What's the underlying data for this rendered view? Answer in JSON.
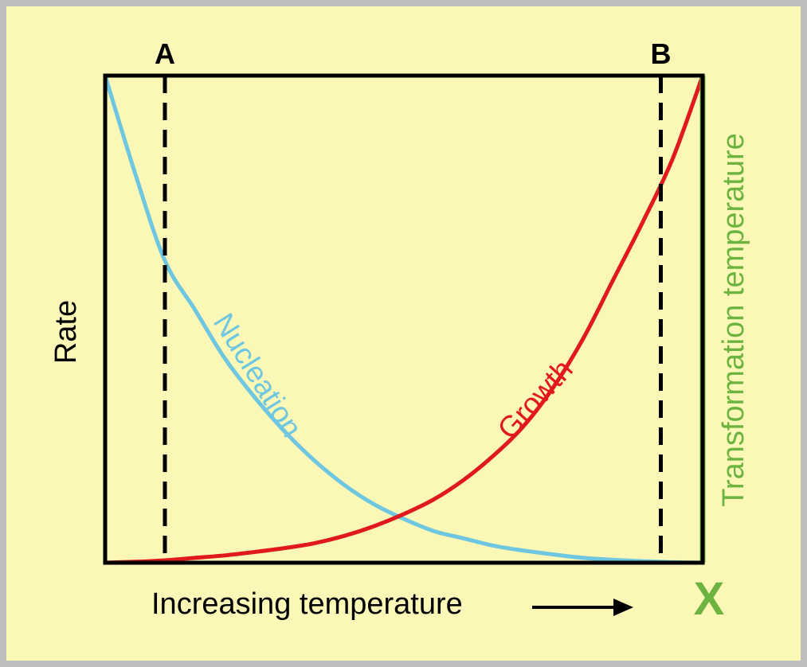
{
  "colors": {
    "background": "#fbf7b6",
    "border": "#bdbdbd",
    "axis": "#000000",
    "nucleation": "#6ec6e0",
    "growth": "#e0191c",
    "transformation": "#6cb43f"
  },
  "chart_data": {
    "type": "line",
    "title": "",
    "xlabel": "Increasing temperature",
    "ylabel": "Rate",
    "xlim": [
      0,
      1
    ],
    "ylim": [
      0,
      1
    ],
    "grid": false,
    "legend": "none",
    "series": [
      {
        "name": "Nucleation",
        "x": [
          0.0,
          0.05,
          0.1,
          0.15,
          0.2,
          0.25,
          0.3,
          0.35,
          0.4,
          0.45,
          0.5,
          0.55,
          0.6,
          0.65,
          0.7,
          0.75,
          0.8,
          0.85,
          0.9,
          0.95,
          1.0
        ],
        "y": [
          1.0,
          0.8,
          0.62,
          0.52,
          0.42,
          0.34,
          0.27,
          0.21,
          0.16,
          0.12,
          0.09,
          0.065,
          0.05,
          0.035,
          0.025,
          0.017,
          0.01,
          0.006,
          0.003,
          0.001,
          0.0
        ]
      },
      {
        "name": "Growth",
        "x": [
          0.0,
          0.05,
          0.1,
          0.15,
          0.2,
          0.25,
          0.3,
          0.35,
          0.4,
          0.45,
          0.5,
          0.55,
          0.6,
          0.65,
          0.7,
          0.75,
          0.8,
          0.85,
          0.9,
          0.95,
          1.0
        ],
        "y": [
          0.0,
          0.002,
          0.005,
          0.01,
          0.015,
          0.022,
          0.03,
          0.04,
          0.055,
          0.075,
          0.1,
          0.13,
          0.17,
          0.22,
          0.28,
          0.36,
          0.46,
          0.58,
          0.7,
          0.83,
          1.0
        ]
      }
    ],
    "markers": [
      {
        "label": "A",
        "x": 0.1
      },
      {
        "label": "B",
        "x": 0.93
      }
    ],
    "transformation": {
      "label": "Transformation temperature",
      "x": 1.0,
      "axis_mark": "X"
    },
    "arrow": "right"
  }
}
